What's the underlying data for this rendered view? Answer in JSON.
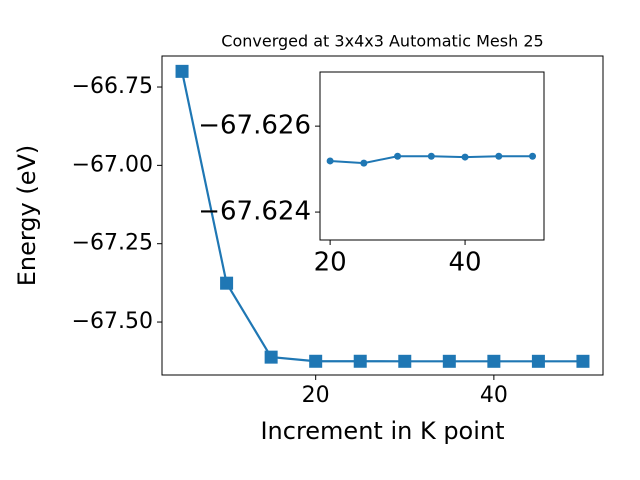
{
  "chart_data": [
    {
      "type": "line",
      "title": "Converged at 3x4x3 Automatic Mesh 25",
      "x_label": "Increment in K point",
      "y_label": "Energy (eV)",
      "x": [
        5,
        10,
        15,
        20,
        25,
        30,
        35,
        40,
        45,
        50
      ],
      "series": [
        {
          "color": "#1f77b4",
          "marker": "square",
          "values": [
            -66.7,
            -67.376,
            -67.612,
            -67.62519,
            -67.62514,
            -67.6253,
            -67.6253,
            -67.62528,
            -67.6253,
            -67.6253
          ]
        }
      ],
      "xlim": [
        2.75,
        52.25
      ],
      "xticks": [
        20,
        40
      ],
      "ylim": [
        -67.669,
        -66.651
      ],
      "yticks": [
        {
          "value": -67.5,
          "label": "−67.50"
        },
        {
          "value": -67.25,
          "label": "−67.25"
        },
        {
          "value": -67.0,
          "label": "−67.00"
        },
        {
          "value": -66.75,
          "label": "−66.75"
        }
      ]
    },
    {
      "type": "line",
      "x": [
        20,
        25,
        30,
        35,
        40,
        45,
        50
      ],
      "series": [
        {
          "color": "#1f77b4",
          "marker": "circle",
          "values": [
            -67.62519,
            -67.62514,
            -67.6253,
            -67.6253,
            -67.62528,
            -67.6253,
            -67.6253
          ]
        }
      ],
      "xlim": [
        18.5,
        51.7
      ],
      "xticks": [
        20,
        40
      ],
      "ylim": [
        -67.62335,
        -67.62726
      ],
      "yticks": [
        {
          "value": -67.624,
          "label": "−67.624"
        },
        {
          "value": -67.626,
          "label": "−67.626"
        }
      ]
    }
  ]
}
